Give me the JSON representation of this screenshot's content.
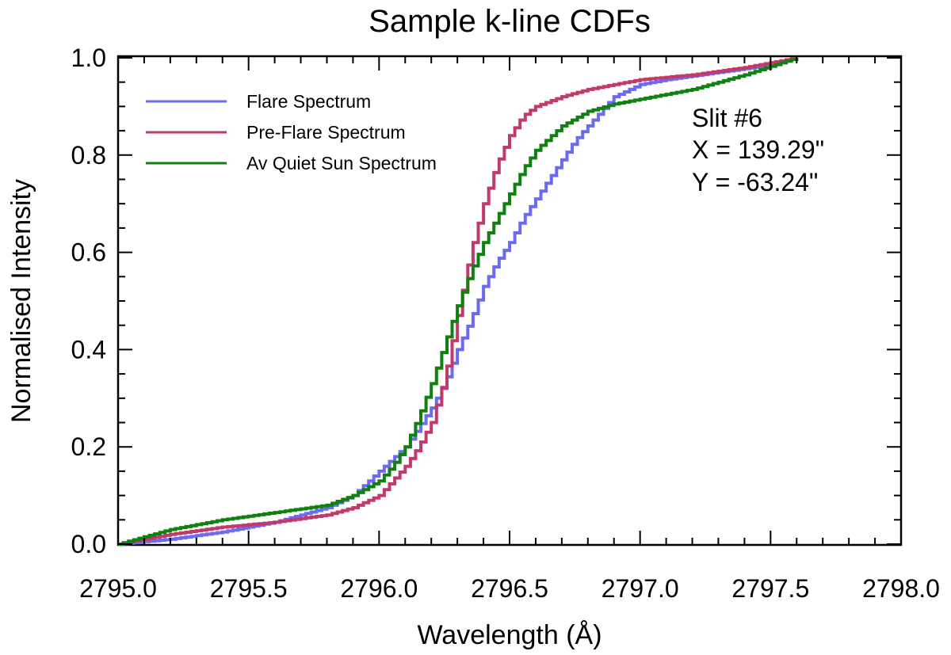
{
  "chart_data": {
    "type": "line",
    "title": "Sample k-line CDFs",
    "xlabel": "Wavelength (Å)",
    "ylabel": "Normalised Intensity",
    "xlim": [
      2795.0,
      2798.0
    ],
    "ylim": [
      0.0,
      1.0
    ],
    "xticks": [
      2795.0,
      2795.5,
      2796.0,
      2796.5,
      2797.0,
      2797.5,
      2798.0
    ],
    "xtick_labels": [
      "2795.0",
      "2795.5",
      "2796.0",
      "2796.5",
      "2797.0",
      "2797.5",
      "2798.0"
    ],
    "yticks": [
      0.0,
      0.2,
      0.4,
      0.6,
      0.8,
      1.0
    ],
    "ytick_labels": [
      "0.0",
      "0.2",
      "0.4",
      "0.6",
      "0.8",
      "1.0"
    ],
    "legend_position": "top-left",
    "annotations": [
      "Slit #6",
      "X = 139.29\"",
      "Y = -63.24\""
    ],
    "series": [
      {
        "name": "Flare Spectrum",
        "color": "#6a6af2",
        "x": [
          2795.0,
          2795.2,
          2795.4,
          2795.6,
          2795.8,
          2795.9,
          2796.0,
          2796.1,
          2796.15,
          2796.2,
          2796.25,
          2796.3,
          2796.35,
          2796.4,
          2796.45,
          2796.5,
          2796.55,
          2796.6,
          2796.65,
          2796.7,
          2796.75,
          2796.8,
          2796.85,
          2796.9,
          2797.0,
          2797.1,
          2797.3,
          2797.5,
          2797.6
        ],
        "y": [
          0.0,
          0.01,
          0.025,
          0.045,
          0.075,
          0.1,
          0.15,
          0.2,
          0.24,
          0.28,
          0.33,
          0.4,
          0.46,
          0.53,
          0.58,
          0.62,
          0.67,
          0.71,
          0.75,
          0.79,
          0.83,
          0.86,
          0.89,
          0.92,
          0.945,
          0.955,
          0.97,
          0.985,
          1.0
        ]
      },
      {
        "name": "Pre-Flare Spectrum",
        "color": "#c23a6c",
        "x": [
          2795.0,
          2795.2,
          2795.4,
          2795.6,
          2795.8,
          2795.9,
          2796.0,
          2796.05,
          2796.1,
          2796.15,
          2796.2,
          2796.25,
          2796.3,
          2796.35,
          2796.4,
          2796.45,
          2796.5,
          2796.55,
          2796.6,
          2796.7,
          2796.8,
          2796.9,
          2797.0,
          2797.2,
          2797.4,
          2797.6
        ],
        "y": [
          0.0,
          0.02,
          0.035,
          0.045,
          0.06,
          0.075,
          0.1,
          0.13,
          0.16,
          0.2,
          0.25,
          0.34,
          0.47,
          0.6,
          0.7,
          0.78,
          0.84,
          0.88,
          0.9,
          0.92,
          0.935,
          0.945,
          0.955,
          0.965,
          0.98,
          1.0
        ]
      },
      {
        "name": "Av Quiet Sun Spectrum",
        "color": "#108010",
        "x": [
          2795.0,
          2795.2,
          2795.4,
          2795.6,
          2795.8,
          2795.9,
          2796.0,
          2796.05,
          2796.1,
          2796.15,
          2796.2,
          2796.25,
          2796.3,
          2796.35,
          2796.4,
          2796.45,
          2796.5,
          2796.55,
          2796.6,
          2796.7,
          2796.8,
          2796.9,
          2797.0,
          2797.2,
          2797.4,
          2797.6
        ],
        "y": [
          0.0,
          0.03,
          0.05,
          0.065,
          0.08,
          0.1,
          0.13,
          0.16,
          0.2,
          0.26,
          0.33,
          0.41,
          0.49,
          0.56,
          0.62,
          0.67,
          0.72,
          0.77,
          0.81,
          0.86,
          0.89,
          0.905,
          0.915,
          0.935,
          0.965,
          1.0
        ]
      }
    ]
  }
}
